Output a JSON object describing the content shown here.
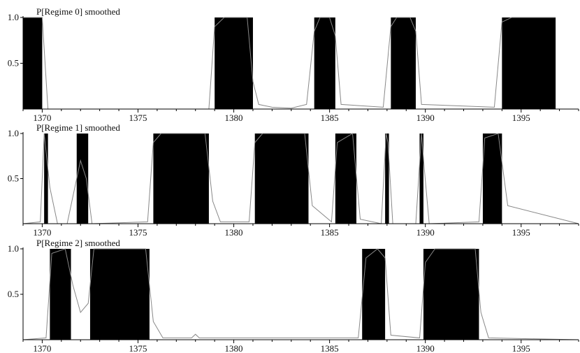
{
  "chart_data": [
    {
      "type": "area",
      "title": "P[Regime 0] smoothed",
      "xlim": [
        1369,
        1398
      ],
      "ylim": [
        0,
        1
      ],
      "xticks": [
        1370,
        1375,
        1380,
        1385,
        1390,
        1395
      ],
      "yticks": [
        0.5,
        1.0
      ],
      "ytick_labels": [
        "0.5",
        "1.0"
      ],
      "shaded_intervals": [
        [
          1369,
          1370
        ],
        [
          1379,
          1381
        ],
        [
          1384.2,
          1385.3
        ],
        [
          1388.2,
          1389.5
        ],
        [
          1394,
          1396.8
        ]
      ],
      "series": [
        {
          "x": [
            1369,
            1370,
            1370.3,
            1378.7,
            1379,
            1379.5,
            1380.7,
            1381,
            1381.3,
            1382,
            1383,
            1383.8,
            1384.2,
            1384.5,
            1385.0,
            1385.3,
            1385.6,
            1387.8,
            1388.2,
            1388.5,
            1389.2,
            1389.5,
            1389.8,
            1393.6,
            1394,
            1394.5,
            1396.8
          ],
          "y": [
            1,
            1,
            0,
            0,
            0.9,
            1,
            1,
            0.3,
            0.05,
            0.02,
            0.01,
            0.05,
            0.85,
            1,
            1,
            0.8,
            0.05,
            0.02,
            0.9,
            1,
            1,
            0.85,
            0.05,
            0.02,
            0.95,
            1,
            1
          ]
        }
      ]
    },
    {
      "type": "area",
      "title": "P[Regime 1] smoothed",
      "xlim": [
        1369,
        1398
      ],
      "ylim": [
        0,
        1
      ],
      "xticks": [
        1370,
        1375,
        1380,
        1385,
        1390,
        1395
      ],
      "yticks": [
        0.5,
        1.0
      ],
      "ytick_labels": [
        "0.5",
        "1.0"
      ],
      "shaded_intervals": [
        [
          1370.1,
          1370.3
        ],
        [
          1371.8,
          1372.4
        ],
        [
          1375.8,
          1378.7
        ],
        [
          1381.1,
          1383.9
        ],
        [
          1385.3,
          1386.4
        ],
        [
          1387.9,
          1388.1
        ],
        [
          1389.7,
          1389.9
        ],
        [
          1393,
          1394
        ]
      ],
      "series": [
        {
          "x": [
            1369,
            1369.9,
            1370.1,
            1370.4,
            1370.8,
            1371.3,
            1371.7,
            1372.0,
            1372.3,
            1372.6,
            1375.5,
            1375.8,
            1376.2,
            1378.5,
            1378.9,
            1379.3,
            1380.8,
            1381.1,
            1381.5,
            1383.7,
            1384.1,
            1385.1,
            1385.4,
            1386.2,
            1386.6,
            1387.7,
            1387.95,
            1388.05,
            1388.3,
            1389.5,
            1389.8,
            1389.95,
            1390.2,
            1392.8,
            1393.1,
            1393.8,
            1394.3,
            1398
          ],
          "y": [
            0,
            0.02,
            1,
            0.4,
            0,
            0,
            0.4,
            0.7,
            0.5,
            0,
            0.02,
            0.9,
            1,
            1,
            0.25,
            0.02,
            0.02,
            0.9,
            1,
            1,
            0.2,
            0.02,
            0.9,
            1,
            0.05,
            0,
            1,
            0.9,
            0,
            0,
            1,
            0.6,
            0,
            0.02,
            0.95,
            1,
            0.2,
            0
          ]
        }
      ]
    },
    {
      "type": "area",
      "title": "P[Regime 2] smoothed",
      "xlim": [
        1369,
        1398
      ],
      "ylim": [
        0,
        1
      ],
      "xticks": [
        1370,
        1375,
        1380,
        1385,
        1390,
        1395
      ],
      "yticks": [
        0.5,
        1.0
      ],
      "ytick_labels": [
        "0.5",
        "1.0"
      ],
      "shaded_intervals": [
        [
          1370.4,
          1371.5
        ],
        [
          1372.5,
          1375.6
        ],
        [
          1386.7,
          1387.9
        ],
        [
          1389.9,
          1392.8
        ]
      ],
      "series": [
        {
          "x": [
            1369,
            1370.2,
            1370.5,
            1371.2,
            1371.6,
            1372.0,
            1372.4,
            1372.7,
            1375.4,
            1375.8,
            1376.3,
            1377.8,
            1378.0,
            1378.2,
            1386.5,
            1386.9,
            1387.5,
            1387.9,
            1388.2,
            1389.7,
            1390.0,
            1390.5,
            1392.6,
            1392.9,
            1393.3,
            1398
          ],
          "y": [
            0,
            0.02,
            0.95,
            1,
            0.6,
            0.3,
            0.4,
            1,
            1,
            0.2,
            0.02,
            0.02,
            0.06,
            0.02,
            0.02,
            0.9,
            1,
            0.9,
            0.05,
            0.02,
            0.85,
            1,
            1,
            0.3,
            0.02,
            0
          ]
        }
      ]
    }
  ]
}
